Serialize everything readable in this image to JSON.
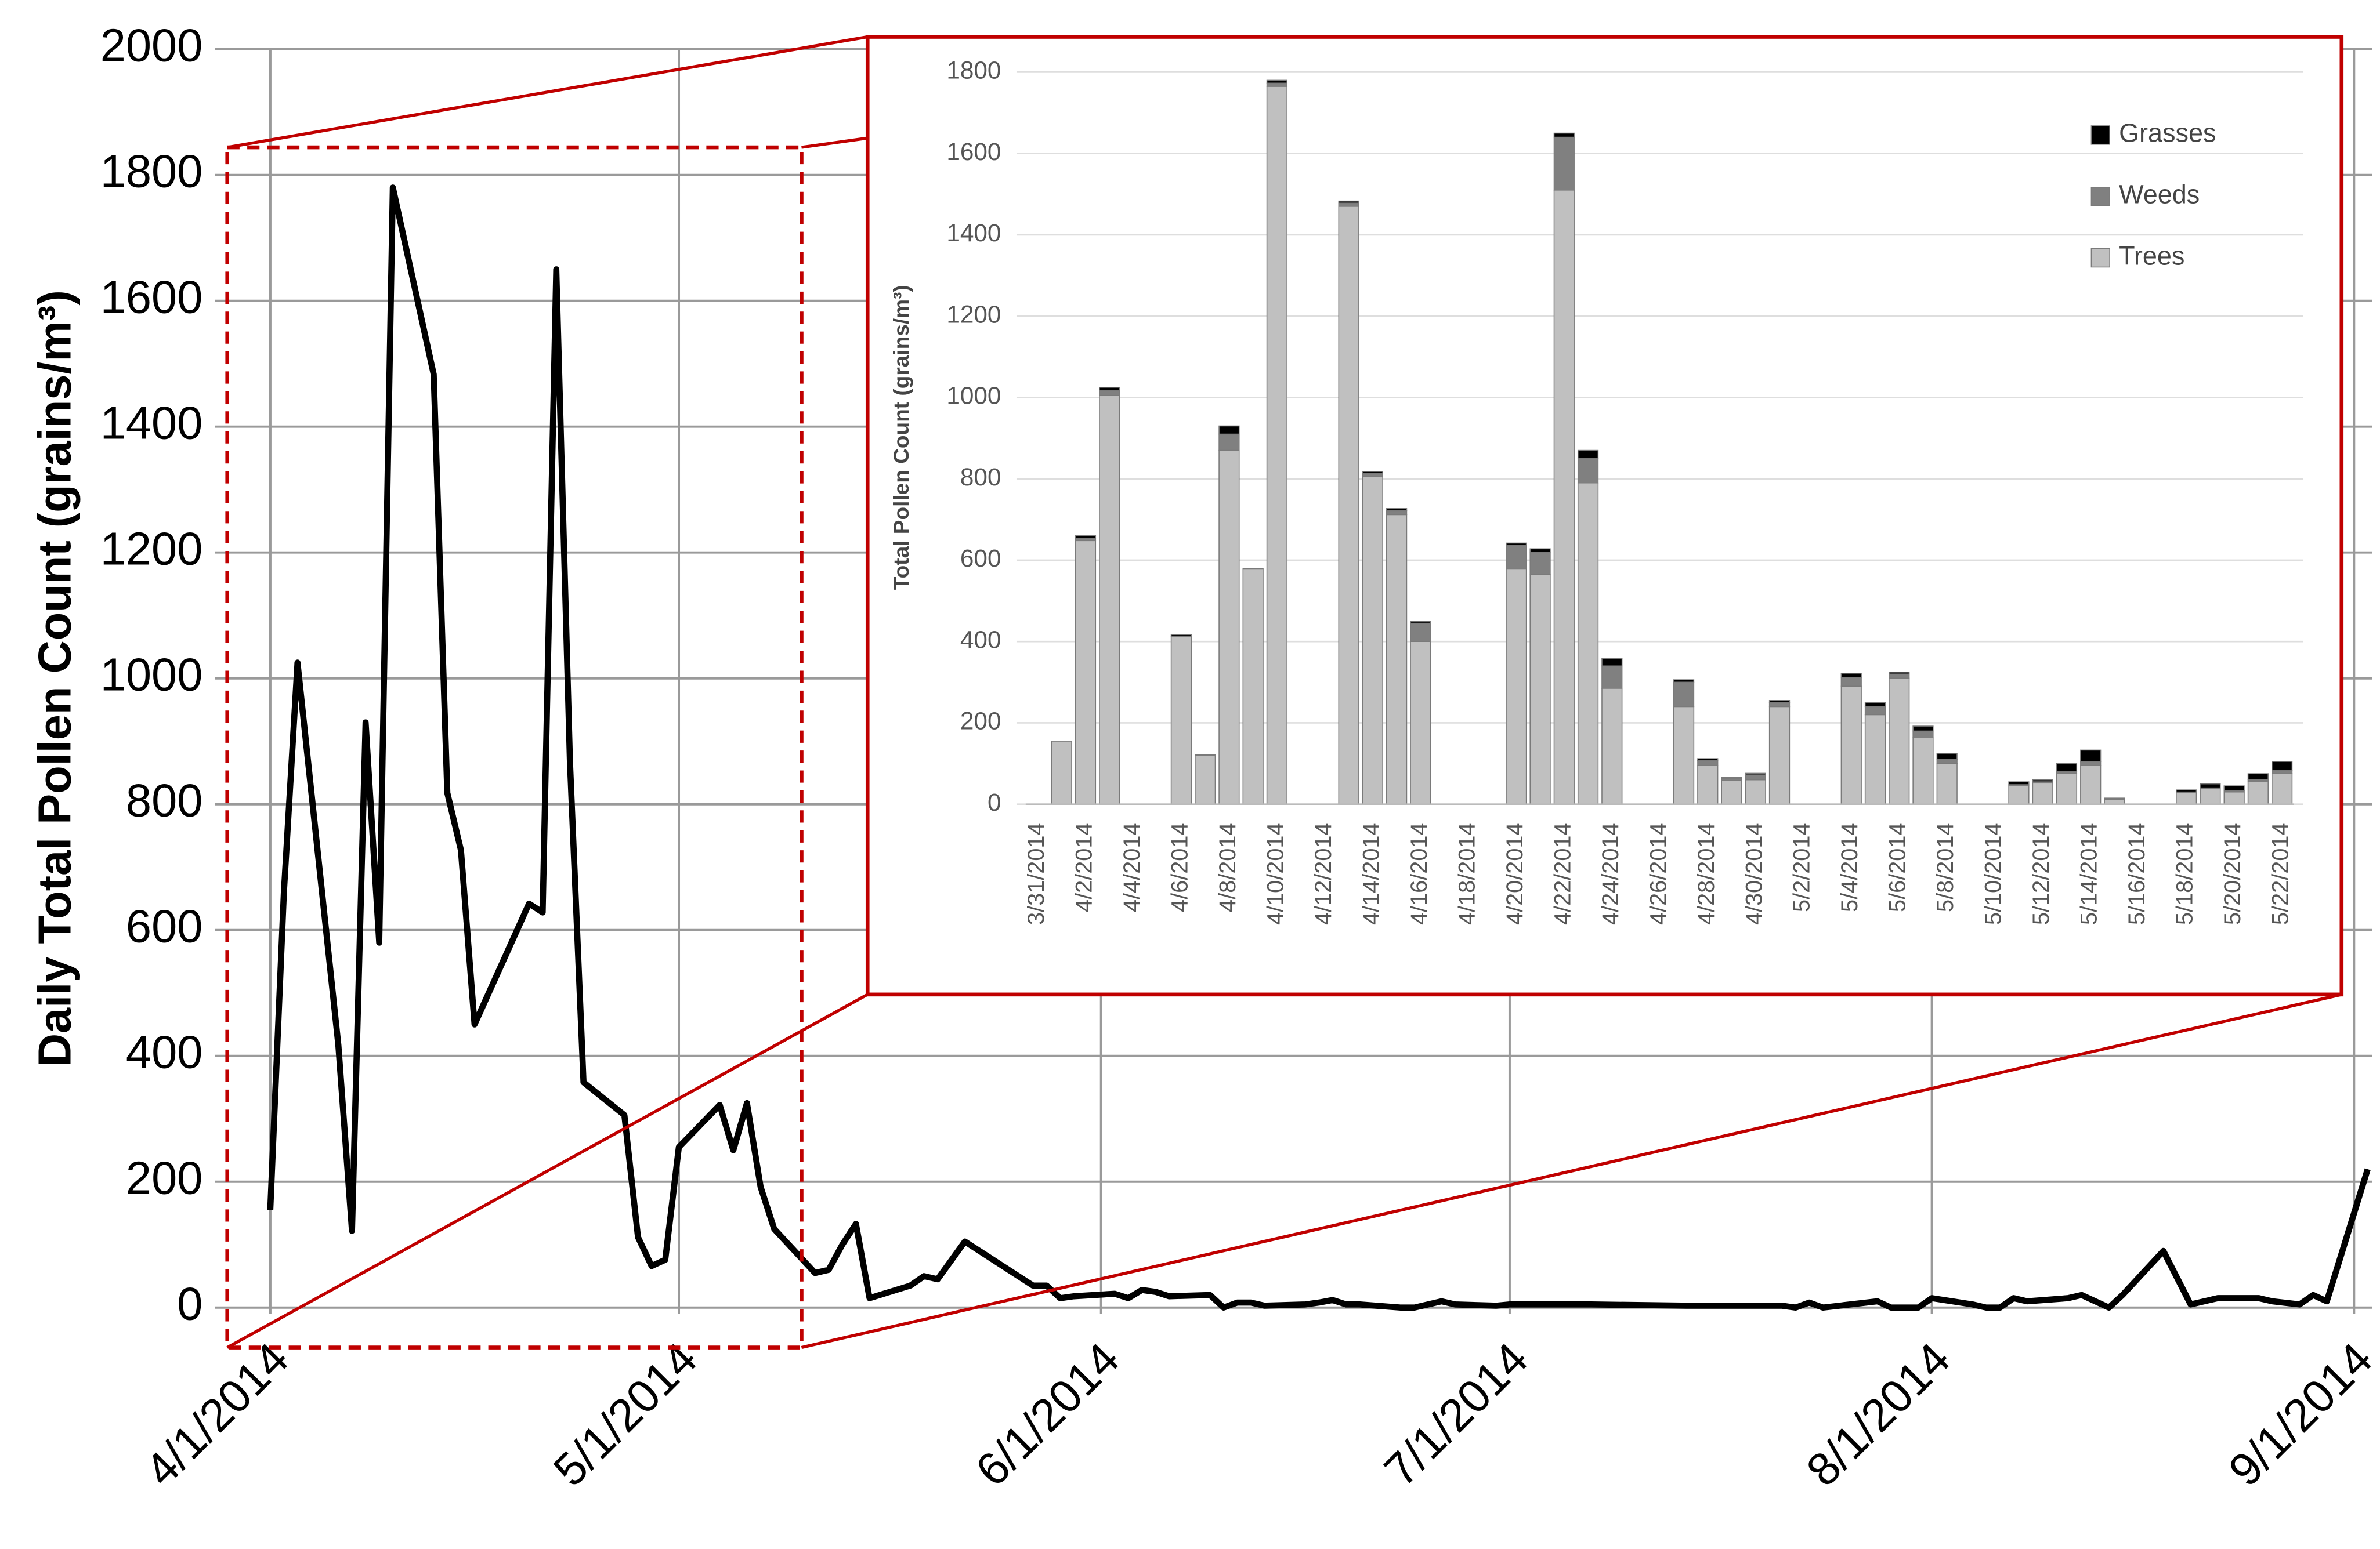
{
  "chart_data": [
    {
      "type": "line",
      "y_label": "Daily Total Pollen Count (grains/m³)",
      "color": "#000000",
      "x": [
        "4/1/2014",
        "4/2/2014",
        "4/3/2014",
        "4/6/2014",
        "4/7/2014",
        "4/8/2014",
        "4/9/2014",
        "4/10/2014",
        "4/13/2014",
        "4/14/2014",
        "4/15/2014",
        "4/16/2014",
        "4/20/2014",
        "4/21/2014",
        "4/22/2014",
        "4/23/2014",
        "4/24/2014",
        "4/27/2014",
        "4/28/2014",
        "4/29/2014",
        "4/30/2014",
        "5/1/2014",
        "5/4/2014",
        "5/5/2014",
        "5/6/2014",
        "5/7/2014",
        "5/8/2014",
        "5/11/2014",
        "5/12/2014",
        "5/13/2014",
        "5/14/2014",
        "5/15/2014",
        "5/18/2014",
        "5/19/2014",
        "5/20/2014",
        "5/21/2014",
        "5/22/2014",
        "5/27/2014",
        "5/28/2014",
        "5/29/2014",
        "5/30/2014",
        "6/2/2014",
        "6/3/2014",
        "6/4/2014",
        "6/5/2014",
        "6/6/2014",
        "6/9/2014",
        "6/10/2014",
        "6/11/2014",
        "6/12/2014",
        "6/13/2014",
        "6/16/2014",
        "6/17/2014",
        "6/18/2014",
        "6/19/2014",
        "6/20/2014",
        "6/23/2014",
        "6/24/2014",
        "6/25/2014",
        "6/26/2014",
        "6/27/2014",
        "6/30/2014",
        "7/1/2014",
        "7/7/2014",
        "7/14/2014",
        "7/21/2014",
        "7/22/2014",
        "7/23/2014",
        "7/24/2014",
        "7/28/2014",
        "7/29/2014",
        "7/31/2014",
        "8/1/2014",
        "8/4/2014",
        "8/5/2014",
        "8/6/2014",
        "8/7/2014",
        "8/8/2014",
        "8/11/2014",
        "8/12/2014",
        "8/14/2014",
        "8/15/2014",
        "8/18/2014",
        "8/20/2014",
        "8/22/2014",
        "8/25/2014",
        "8/26/2014",
        "8/28/2014",
        "8/29/2014",
        "8/30/2014",
        "9/2/2014"
      ],
      "values": [
        155,
        660,
        1025,
        417,
        122,
        930,
        580,
        1780,
        1483,
        818,
        727,
        450,
        642,
        628,
        1650,
        870,
        358,
        306,
        112,
        66,
        76,
        255,
        322,
        250,
        325,
        192,
        125,
        55,
        60,
        100,
        133,
        15,
        35,
        50,
        45,
        75,
        105,
        35,
        35,
        15,
        18,
        22,
        15,
        28,
        25,
        18,
        20,
        0,
        8,
        8,
        3,
        5,
        8,
        12,
        5,
        5,
        0,
        0,
        5,
        10,
        5,
        3,
        5,
        5,
        3,
        3,
        0,
        8,
        0,
        10,
        0,
        0,
        15,
        5,
        0,
        0,
        15,
        10,
        15,
        20,
        0,
        20,
        90,
        5,
        15,
        15,
        10,
        5,
        20,
        10,
        220
      ],
      "xlim": [
        "4/1/2014",
        "9/2/2014"
      ],
      "xticks": [
        "4/1/2014",
        "5/1/2014",
        "6/1/2014",
        "7/1/2014",
        "8/1/2014",
        "9/1/2014"
      ],
      "ylim": [
        0,
        2000
      ],
      "yticks": [
        0,
        200,
        400,
        600,
        800,
        1000,
        1200,
        1400,
        1600,
        1800,
        2000
      ],
      "grid": true
    },
    {
      "type": "bar",
      "stacked": true,
      "y_label": "Total Pollen Count (grains/m³)",
      "categories": [
        "3/31/2014",
        null,
        "4/2/2014",
        null,
        "4/4/2014",
        null,
        "4/6/2014",
        null,
        "4/8/2014",
        null,
        "4/10/2014",
        null,
        "4/12/2014",
        null,
        "4/14/2014",
        null,
        "4/16/2014",
        null,
        "4/18/2014",
        null,
        "4/20/2014",
        null,
        "4/22/2014",
        null,
        "4/24/2014",
        null,
        "4/26/2014",
        null,
        "4/28/2014",
        null,
        "4/30/2014",
        null,
        "5/2/2014",
        null,
        "5/4/2014",
        null,
        "5/6/2014",
        null,
        "5/8/2014",
        null,
        "5/10/2014",
        null,
        "5/12/2014",
        null,
        "5/14/2014",
        null,
        "5/16/2014",
        null,
        "5/18/2014",
        null,
        "5/20/2014",
        null,
        "5/22/2014"
      ],
      "series": [
        {
          "name": "Trees",
          "color": "#c0c0c0",
          "values": [
            null,
            155,
            648,
            1005,
            null,
            null,
            412,
            120,
            870,
            578,
            1765,
            null,
            null,
            1470,
            805,
            712,
            400,
            null,
            null,
            null,
            578,
            565,
            1510,
            790,
            285,
            null,
            null,
            240,
            95,
            58,
            60,
            240,
            null,
            null,
            290,
            220,
            310,
            165,
            100,
            null,
            null,
            45,
            52,
            75,
            95,
            12,
            null,
            null,
            28,
            38,
            30,
            55,
            75
          ]
        },
        {
          "name": "Weeds",
          "color": "#808080",
          "values": [
            null,
            0,
            6,
            12,
            null,
            null,
            0,
            0,
            40,
            0,
            8,
            null,
            null,
            8,
            8,
            10,
            45,
            null,
            null,
            null,
            58,
            55,
            130,
            60,
            55,
            null,
            null,
            60,
            12,
            5,
            12,
            10,
            null,
            null,
            22,
            20,
            10,
            15,
            10,
            null,
            null,
            3,
            3,
            5,
            10,
            1,
            null,
            null,
            2,
            2,
            3,
            5,
            8
          ]
        },
        {
          "name": "Grasses",
          "color": "#000000",
          "values": [
            null,
            0,
            6,
            8,
            null,
            null,
            5,
            2,
            20,
            2,
            7,
            null,
            null,
            5,
            5,
            5,
            5,
            null,
            null,
            null,
            6,
            8,
            10,
            20,
            18,
            null,
            null,
            6,
            5,
            3,
            4,
            5,
            null,
            null,
            10,
            10,
            5,
            12,
            15,
            null,
            null,
            7,
            5,
            20,
            28,
            2,
            null,
            null,
            5,
            10,
            12,
            15,
            22
          ]
        }
      ],
      "ylim": [
        0,
        1800
      ],
      "yticks": [
        0,
        200,
        400,
        600,
        800,
        1000,
        1200,
        1400,
        1600,
        1800
      ],
      "grid": true,
      "legend": "upper right"
    }
  ]
}
